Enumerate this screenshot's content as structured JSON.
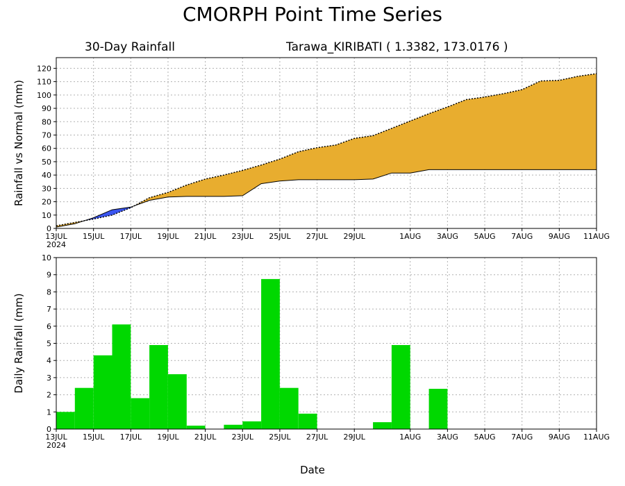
{
  "title": "CMORPH Point Time Series",
  "subtitle_left": "30-Day Rainfall",
  "subtitle_right": "Tarawa_KIRIBATI ( 1.3382, 173.0176 )",
  "x_axis_label": "Date",
  "year_label": "2024",
  "colors": {
    "surplus": "#e8ad2f",
    "deficit": "#3a55f0",
    "bars": "#00d800"
  },
  "chart_data": [
    {
      "type": "area",
      "ylabel": "Rainfall vs Normal (mm)",
      "ylim": [
        0,
        128
      ],
      "yticks": [
        0,
        10,
        20,
        30,
        40,
        50,
        60,
        70,
        80,
        90,
        100,
        110,
        120
      ],
      "x": [
        "13JUL",
        "14JUL",
        "15JUL",
        "16JUL",
        "17JUL",
        "18JUL",
        "19JUL",
        "20JUL",
        "21JUL",
        "22JUL",
        "23JUL",
        "24JUL",
        "25JUL",
        "26JUL",
        "27JUL",
        "28JUL",
        "29JUL",
        "30JUL",
        "31JUL",
        "1AUG",
        "2AUG",
        "3AUG",
        "4AUG",
        "5AUG",
        "6AUG",
        "7AUG",
        "8AUG",
        "9AUG",
        "10AUG",
        "11AUG"
      ],
      "xtick_labels": [
        "13JUL",
        "15JUL",
        "17JUL",
        "19JUL",
        "21JUL",
        "23JUL",
        "25JUL",
        "27JUL",
        "29JUL",
        "1AUG",
        "3AUG",
        "5AUG",
        "7AUG",
        "9AUG",
        "11AUG"
      ],
      "series": [
        {
          "name": "Actual",
          "values": [
            1,
            3.5,
            8,
            14,
            16,
            21,
            23.5,
            24,
            24,
            24,
            24.5,
            33.5,
            35.5,
            36.5,
            36.5,
            36.5,
            36.5,
            37,
            41.5,
            41.5,
            44,
            44,
            44,
            44,
            44,
            44,
            44,
            44,
            44,
            44
          ]
        },
        {
          "name": "Normal",
          "values": [
            2,
            4.5,
            7,
            10,
            15.5,
            23,
            27,
            32.5,
            37,
            40,
            43.5,
            47.5,
            52,
            57.5,
            60.5,
            62.5,
            67.5,
            69.5,
            75,
            80.5,
            86,
            91,
            96.5,
            98.5,
            101,
            104,
            110.5,
            111,
            114,
            116
          ]
        }
      ]
    },
    {
      "type": "bar",
      "ylabel": "Daily Rainfall (mm)",
      "ylim": [
        0,
        10
      ],
      "yticks": [
        0,
        1,
        2,
        3,
        4,
        5,
        6,
        7,
        8,
        9,
        10
      ],
      "categories": [
        "13JUL",
        "14JUL",
        "15JUL",
        "16JUL",
        "17JUL",
        "18JUL",
        "19JUL",
        "20JUL",
        "21JUL",
        "22JUL",
        "23JUL",
        "24JUL",
        "25JUL",
        "26JUL",
        "27JUL",
        "28JUL",
        "29JUL",
        "30JUL",
        "31JUL",
        "1AUG",
        "2AUG",
        "3AUG",
        "4AUG",
        "5AUG",
        "6AUG",
        "7AUG",
        "8AUG",
        "9AUG",
        "10AUG"
      ],
      "values": [
        1.0,
        2.4,
        4.3,
        6.1,
        1.8,
        4.9,
        3.2,
        0.2,
        0,
        0.25,
        0.45,
        8.75,
        2.4,
        0.9,
        0,
        0,
        0,
        0.4,
        4.9,
        0,
        2.35,
        0,
        0,
        0,
        0,
        0,
        0,
        0,
        0
      ],
      "xtick_labels": [
        "13JUL",
        "15JUL",
        "17JUL",
        "19JUL",
        "21JUL",
        "23JUL",
        "25JUL",
        "27JUL",
        "29JUL",
        "1AUG",
        "3AUG",
        "5AUG",
        "7AUG",
        "9AUG",
        "11AUG"
      ]
    }
  ]
}
